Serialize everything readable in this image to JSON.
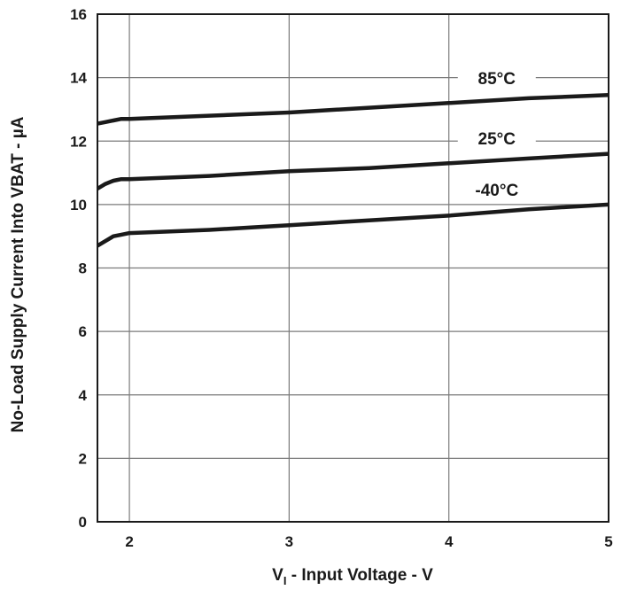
{
  "chart_data": {
    "type": "line",
    "xlabel_main": "V",
    "xlabel_sub": "I",
    "xlabel_rest": " - Input Voltage - V",
    "ylabel": "No-Load Supply Current Into VBAT - µA",
    "xlim": [
      1.8,
      5
    ],
    "ylim": [
      0,
      16
    ],
    "x_ticks": [
      2,
      3,
      4,
      5
    ],
    "y_ticks": [
      0,
      2,
      4,
      6,
      8,
      10,
      12,
      14,
      16
    ],
    "grid": true,
    "series": [
      {
        "name": "85°C",
        "x": [
          1.8,
          1.85,
          1.9,
          1.95,
          2.0,
          2.5,
          3.0,
          3.5,
          4.0,
          4.5,
          5.0
        ],
        "y": [
          12.55,
          12.6,
          12.65,
          12.7,
          12.7,
          12.8,
          12.9,
          13.05,
          13.2,
          13.35,
          13.45
        ]
      },
      {
        "name": "25°C",
        "x": [
          1.8,
          1.85,
          1.9,
          1.95,
          2.0,
          2.5,
          3.0,
          3.5,
          4.0,
          4.5,
          5.0
        ],
        "y": [
          10.5,
          10.65,
          10.75,
          10.8,
          10.8,
          10.9,
          11.05,
          11.15,
          11.3,
          11.45,
          11.6
        ]
      },
      {
        "name": "-40°C",
        "x": [
          1.8,
          1.85,
          1.9,
          1.95,
          2.0,
          2.5,
          3.0,
          3.5,
          4.0,
          4.5,
          5.0
        ],
        "y": [
          8.7,
          8.85,
          9.0,
          9.05,
          9.1,
          9.2,
          9.35,
          9.5,
          9.65,
          9.85,
          10.0
        ]
      }
    ]
  }
}
